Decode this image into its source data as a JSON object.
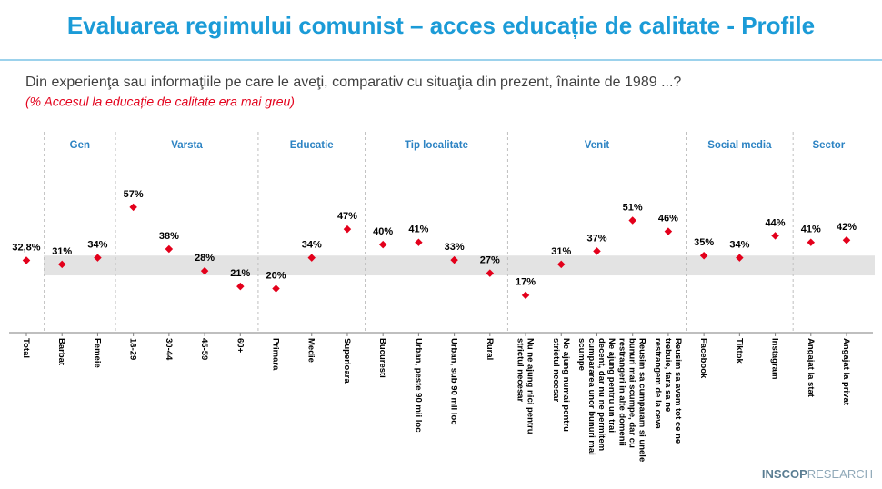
{
  "chart_data": {
    "type": "dot",
    "title": "Evaluarea regimului comunist – acces educație de calitate - Profile",
    "subtitle": "Din experienţa sau informaţiile pe care le aveţi, comparativ cu situaţia din prezent, înainte de 1989 ...?",
    "note": "(% Accesul la educație de calitate era mai greu)",
    "color": "#e3001b",
    "band_color": "#e3e3e3",
    "reference_band": [
      26,
      35
    ],
    "ylim": [
      0,
      90
    ],
    "groups": [
      {
        "name": null,
        "categories": [
          "Total"
        ],
        "values": [
          32.8
        ],
        "value_labels": [
          "32,8%"
        ]
      },
      {
        "name": "Gen",
        "categories": [
          "Barbat",
          "Femeie"
        ],
        "values": [
          31,
          34
        ],
        "value_labels": [
          "31%",
          "34%"
        ]
      },
      {
        "name": "Varsta",
        "categories": [
          "18-29",
          "30-44",
          "45-59",
          "60+"
        ],
        "values": [
          57,
          38,
          28,
          21
        ],
        "value_labels": [
          "57%",
          "38%",
          "28%",
          "21%"
        ]
      },
      {
        "name": "Educatie",
        "categories": [
          "Primara",
          "Medie",
          "Superioara"
        ],
        "values": [
          20,
          34,
          47
        ],
        "value_labels": [
          "20%",
          "34%",
          "47%"
        ]
      },
      {
        "name": "Tip localitate",
        "categories": [
          "Bucuresti",
          "Urban, peste 90 mii loc",
          "Urban, sub 90 mii loc",
          "Rural"
        ],
        "values": [
          40,
          41,
          33,
          27
        ],
        "value_labels": [
          "40%",
          "41%",
          "33%",
          "27%"
        ]
      },
      {
        "name": "Venit",
        "categories": [
          "Nu ne ajung nici pentru strictul necesar",
          "Ne ajung numai pentru strictul necesar",
          "Ne ajung pentru un trai decent, dar nu ne permitem cumpararea unor bunuri mai scumpe",
          "Reusim sa cumparam si unele bunuri mai scumpe, dar cu restrangeri in alte domenii",
          "Reusim sa avem tot ce ne trebuie, fara sa ne restrangem de la ceva"
        ],
        "values": [
          17,
          31,
          37,
          51,
          46
        ],
        "value_labels": [
          "17%",
          "31%",
          "37%",
          "51%",
          "46%"
        ]
      },
      {
        "name": "Social media",
        "categories": [
          "Facebook",
          "Tiktok",
          "Instagram"
        ],
        "values": [
          35,
          34,
          44
        ],
        "value_labels": [
          "35%",
          "34%",
          "44%"
        ]
      },
      {
        "name": "Sector",
        "categories": [
          "Angajat la stat",
          "Angajat la privat"
        ],
        "values": [
          41,
          42
        ],
        "value_labels": [
          "41%",
          "42%"
        ]
      }
    ]
  },
  "logo": {
    "bold": "INSCOP",
    "light": "RESEARCH"
  }
}
